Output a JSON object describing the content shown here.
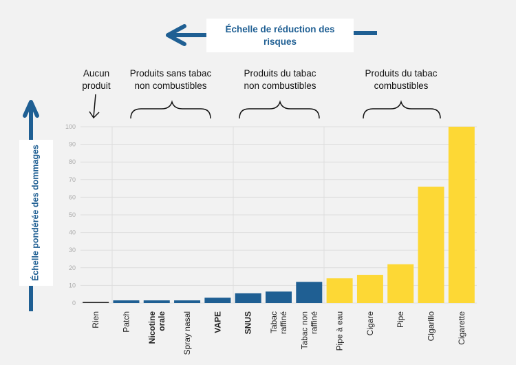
{
  "header": {
    "title": "Échelle de réduction des risques"
  },
  "y_axis_title": "Échelle pondérée des dommages",
  "groups": [
    {
      "line1": "Aucun",
      "line2": "produit"
    },
    {
      "line1": "Produits sans tabac",
      "line2": "non combustibles"
    },
    {
      "line1": "Produits du tabac",
      "line2": "non combustibles"
    },
    {
      "line1": "Produits du tabac",
      "line2": "combustibles"
    }
  ],
  "colors": {
    "blue": "#1f5f93",
    "yellow": "#fdd835",
    "black": "#222222",
    "grid": "#dddddd"
  },
  "chart_data": {
    "type": "bar",
    "title": "Échelle de réduction des risques",
    "xlabel": "",
    "ylabel": "Échelle pondérée des dommages",
    "ylim": [
      0,
      100
    ],
    "yticks": [
      0,
      10,
      20,
      30,
      40,
      50,
      60,
      70,
      80,
      90,
      100
    ],
    "categories": [
      "Rien",
      "Patch",
      "Nicotine orale",
      "Spray nasal",
      "VAPE",
      "SNUS",
      "Tabac raffiné",
      "Tabac non raffiné",
      "Pipe à eau",
      "Cigare",
      "Pipe",
      "Cigarillo",
      "Cigarette"
    ],
    "bold": [
      false,
      false,
      true,
      false,
      true,
      true,
      false,
      false,
      false,
      false,
      false,
      false,
      false
    ],
    "label_lines": [
      [
        "Rien"
      ],
      [
        "Patch"
      ],
      [
        "Nicotine",
        "orale"
      ],
      [
        "Spray nasal"
      ],
      [
        "VAPE"
      ],
      [
        "SNUS"
      ],
      [
        "Tabac",
        "raffiné"
      ],
      [
        "Tabac non",
        "raffiné"
      ],
      [
        "Pipe à eau"
      ],
      [
        "Cigare"
      ],
      [
        "Pipe"
      ],
      [
        "Cigarillo"
      ],
      [
        "Cigarette"
      ]
    ],
    "bar_color": [
      "black",
      "blue",
      "blue",
      "blue",
      "blue",
      "blue",
      "blue",
      "blue",
      "yellow",
      "yellow",
      "yellow",
      "yellow",
      "yellow"
    ],
    "values": [
      0.5,
      1.5,
      1.5,
      1.5,
      3,
      5.5,
      6.5,
      12,
      14,
      16,
      22,
      66,
      100
    ],
    "grid": true,
    "legend": "none"
  }
}
